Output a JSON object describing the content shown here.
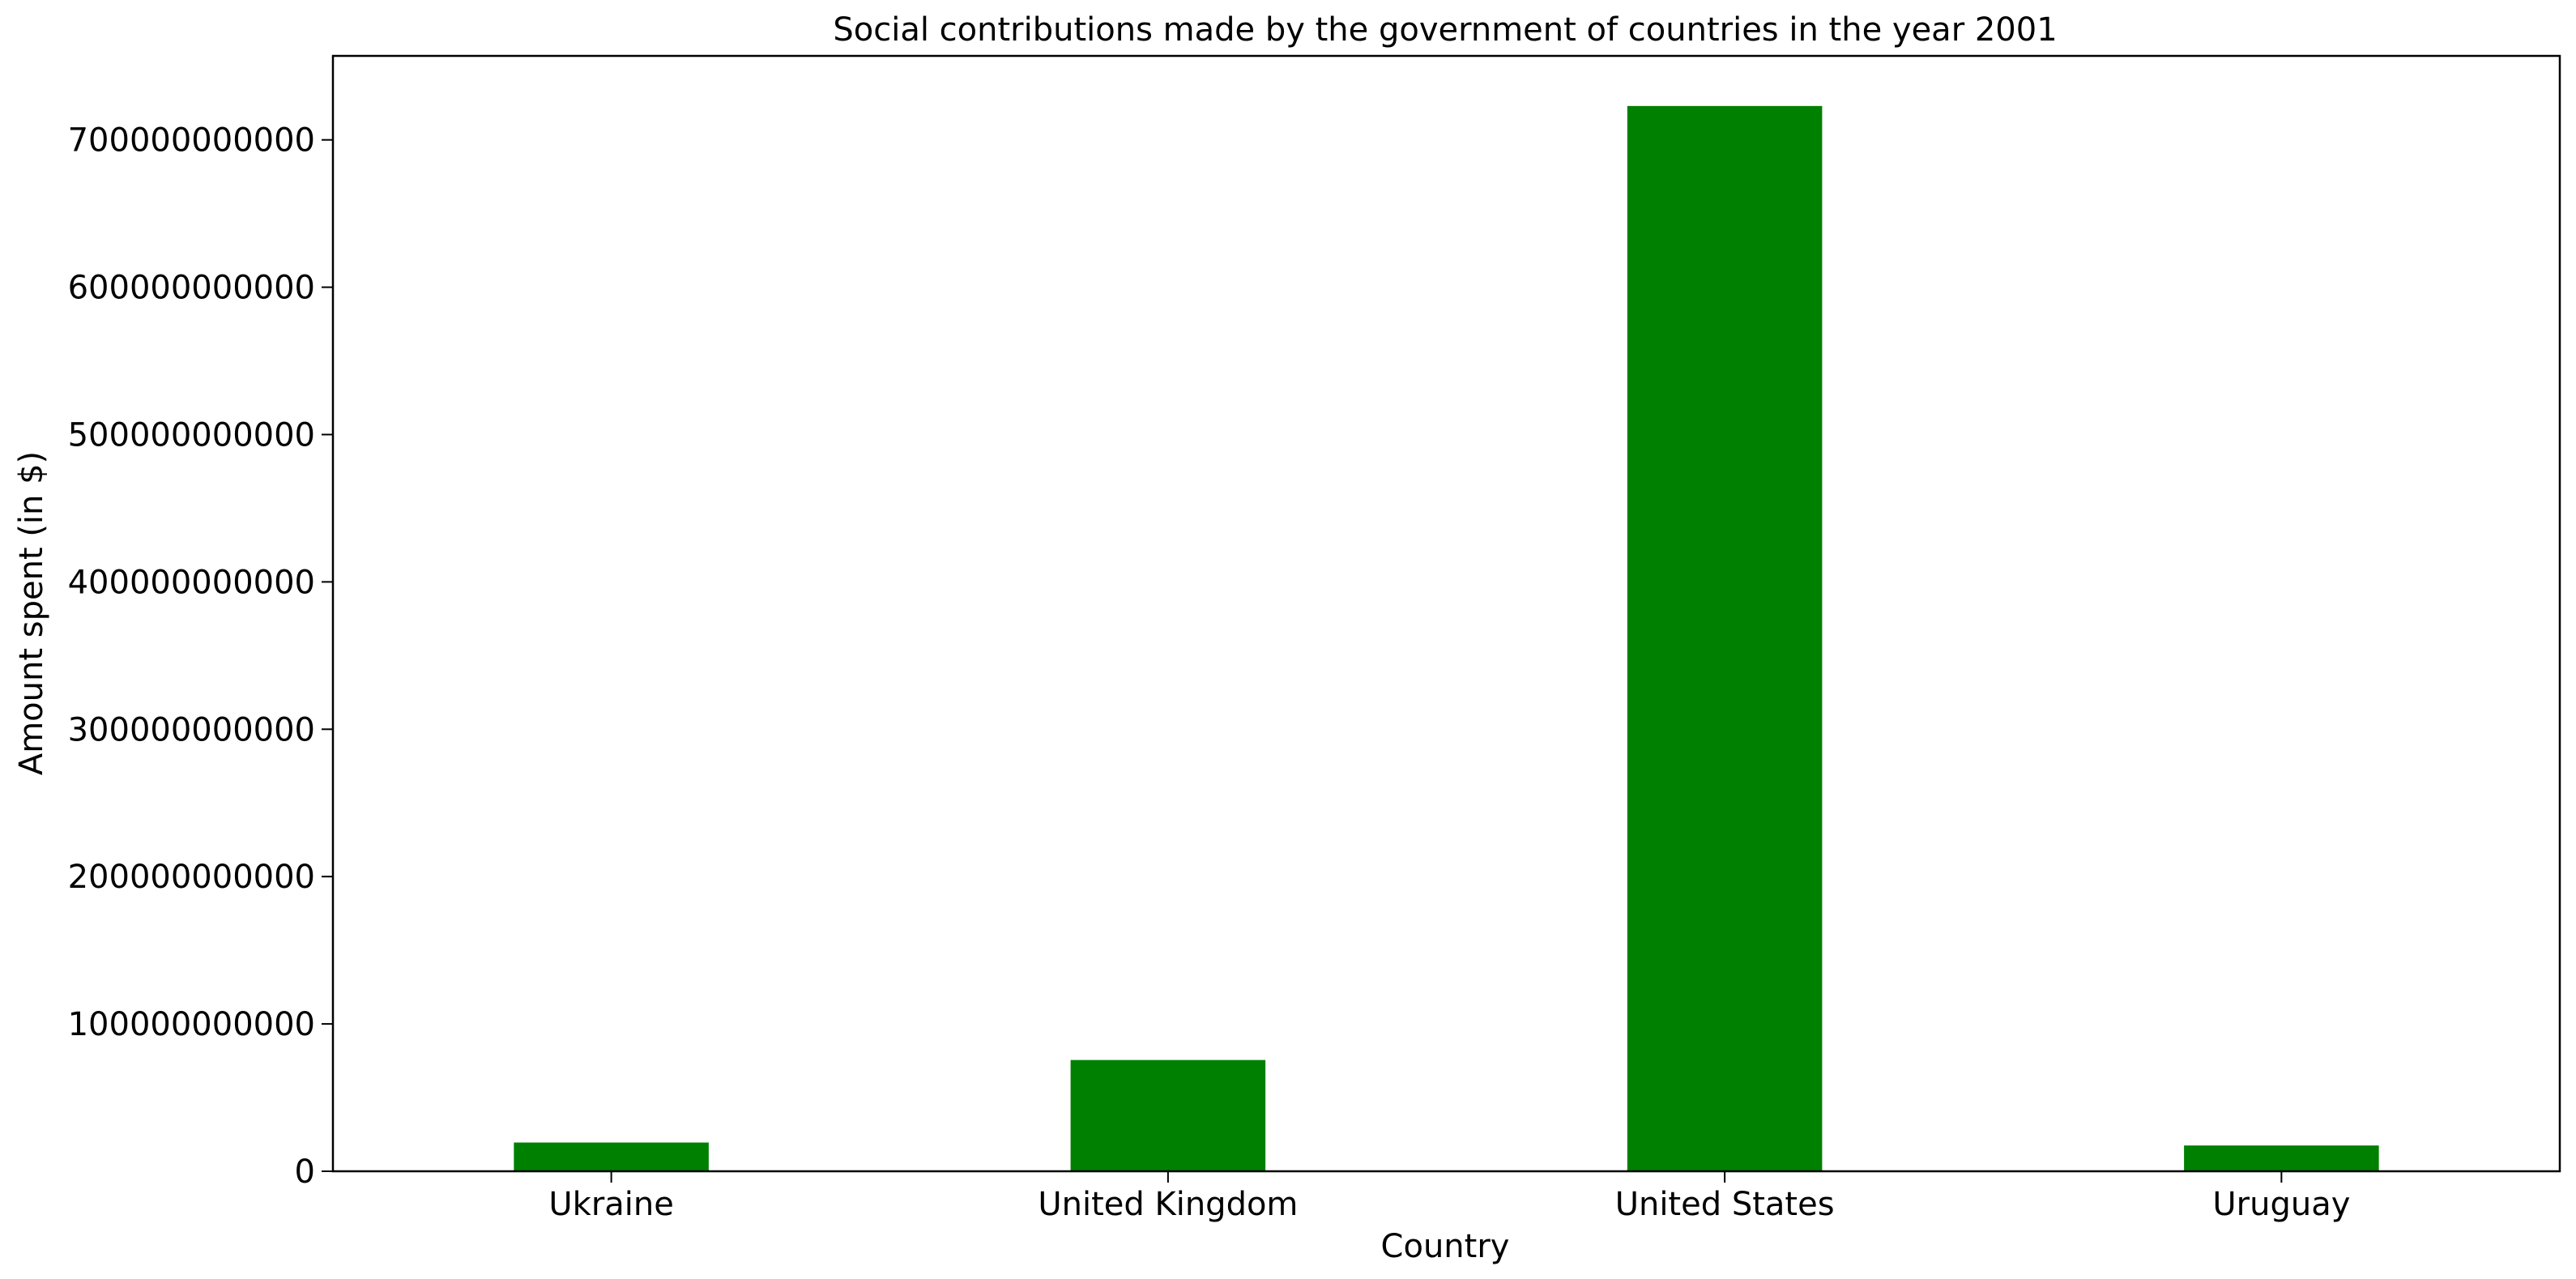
{
  "chart_data": {
    "type": "bar",
    "title": "Social contributions made by the government of countries in the year 2001",
    "xlabel": "Country",
    "ylabel": "Amount spent (in $)",
    "categories": [
      "Ukraine",
      "United Kingdom",
      "United States",
      "Uruguay"
    ],
    "series": [
      {
        "values": [
          19500000000,
          75500000000,
          723000000000,
          17500000000
        ]
      }
    ],
    "bar_color": "#008000",
    "ylim": [
      0,
      757000000000
    ],
    "yticks": [
      0,
      100000000000,
      200000000000,
      300000000000,
      400000000000,
      500000000000,
      600000000000,
      700000000000
    ],
    "ytick_labels": [
      "0",
      "100000000000",
      "200000000000",
      "300000000000",
      "400000000000",
      "500000000000",
      "600000000000",
      "700000000000"
    ],
    "grid": false,
    "legend": "none"
  }
}
